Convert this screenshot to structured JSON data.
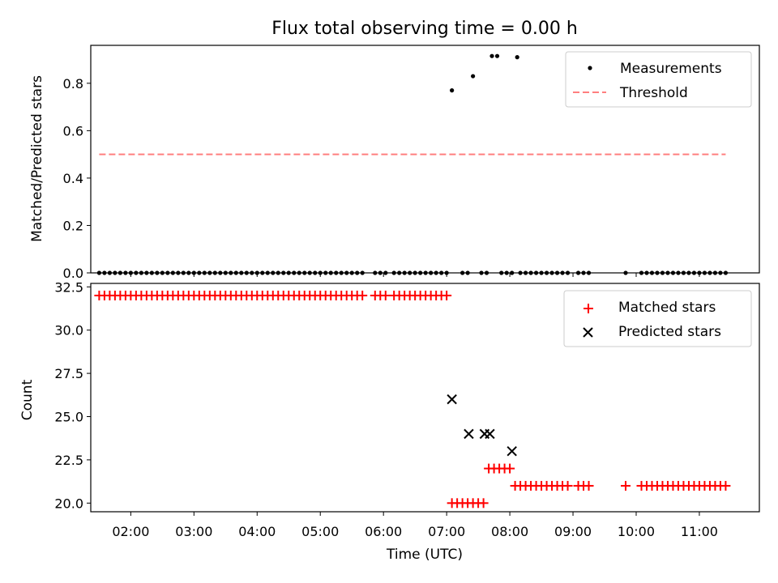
{
  "chart_data": [
    {
      "type": "scatter",
      "title": "Flux total observing time = 0.00 h",
      "xlabel": "",
      "ylabel": "Matched/Predicted stars",
      "xlim": [
        "01:22",
        "11:57"
      ],
      "ylim": [
        0,
        0.96
      ],
      "yticks": [
        "0.0",
        "0.2",
        "0.4",
        "0.6",
        "0.8"
      ],
      "legend_position": "top-right",
      "series": [
        {
          "name": "Measurements",
          "marker": "dot",
          "color": "#000000",
          "points": [
            [
              "01:30",
              0
            ],
            [
              "01:35",
              0
            ],
            [
              "01:40",
              0
            ],
            [
              "01:45",
              0
            ],
            [
              "01:50",
              0
            ],
            [
              "01:55",
              0
            ],
            [
              "02:00",
              0
            ],
            [
              "02:05",
              0
            ],
            [
              "02:10",
              0
            ],
            [
              "02:15",
              0
            ],
            [
              "02:20",
              0
            ],
            [
              "02:25",
              0
            ],
            [
              "02:30",
              0
            ],
            [
              "02:35",
              0
            ],
            [
              "02:40",
              0
            ],
            [
              "02:45",
              0
            ],
            [
              "02:50",
              0
            ],
            [
              "02:55",
              0
            ],
            [
              "03:00",
              0
            ],
            [
              "03:05",
              0
            ],
            [
              "03:10",
              0
            ],
            [
              "03:15",
              0
            ],
            [
              "03:20",
              0
            ],
            [
              "03:25",
              0
            ],
            [
              "03:30",
              0
            ],
            [
              "03:35",
              0
            ],
            [
              "03:40",
              0
            ],
            [
              "03:45",
              0
            ],
            [
              "03:50",
              0
            ],
            [
              "03:55",
              0
            ],
            [
              "04:00",
              0
            ],
            [
              "04:05",
              0
            ],
            [
              "04:10",
              0
            ],
            [
              "04:15",
              0
            ],
            [
              "04:20",
              0
            ],
            [
              "04:25",
              0
            ],
            [
              "04:30",
              0
            ],
            [
              "04:35",
              0
            ],
            [
              "04:40",
              0
            ],
            [
              "04:45",
              0
            ],
            [
              "04:50",
              0
            ],
            [
              "04:55",
              0
            ],
            [
              "05:00",
              0
            ],
            [
              "05:05",
              0
            ],
            [
              "05:10",
              0
            ],
            [
              "05:15",
              0
            ],
            [
              "05:20",
              0
            ],
            [
              "05:25",
              0
            ],
            [
              "05:30",
              0
            ],
            [
              "05:35",
              0
            ],
            [
              "05:40",
              0
            ],
            [
              "05:52",
              0
            ],
            [
              "05:57",
              0
            ],
            [
              "06:02",
              0
            ],
            [
              "06:10",
              0
            ],
            [
              "06:15",
              0
            ],
            [
              "06:20",
              0
            ],
            [
              "06:25",
              0
            ],
            [
              "06:30",
              0
            ],
            [
              "06:35",
              0
            ],
            [
              "06:40",
              0
            ],
            [
              "06:45",
              0
            ],
            [
              "06:50",
              0
            ],
            [
              "06:55",
              0
            ],
            [
              "07:00",
              0
            ],
            [
              "07:05",
              0.77
            ],
            [
              "07:15",
              0
            ],
            [
              "07:20",
              0
            ],
            [
              "07:25",
              0.83
            ],
            [
              "07:33",
              0
            ],
            [
              "07:38",
              0
            ],
            [
              "07:43",
              0.915
            ],
            [
              "07:48",
              0.915
            ],
            [
              "07:52",
              0
            ],
            [
              "07:57",
              0
            ],
            [
              "08:02",
              0
            ],
            [
              "08:07",
              0.91
            ],
            [
              "08:10",
              0
            ],
            [
              "08:15",
              0
            ],
            [
              "08:20",
              0
            ],
            [
              "08:25",
              0
            ],
            [
              "08:30",
              0
            ],
            [
              "08:35",
              0
            ],
            [
              "08:40",
              0
            ],
            [
              "08:45",
              0
            ],
            [
              "08:50",
              0
            ],
            [
              "08:55",
              0
            ],
            [
              "09:05",
              0
            ],
            [
              "09:10",
              0
            ],
            [
              "09:15",
              0
            ],
            [
              "09:50",
              0
            ],
            [
              "10:05",
              0
            ],
            [
              "10:10",
              0
            ],
            [
              "10:15",
              0
            ],
            [
              "10:20",
              0
            ],
            [
              "10:25",
              0
            ],
            [
              "10:30",
              0
            ],
            [
              "10:35",
              0
            ],
            [
              "10:40",
              0
            ],
            [
              "10:45",
              0
            ],
            [
              "10:50",
              0
            ],
            [
              "10:55",
              0
            ],
            [
              "11:00",
              0
            ],
            [
              "11:05",
              0
            ],
            [
              "11:10",
              0
            ],
            [
              "11:15",
              0
            ],
            [
              "11:20",
              0
            ],
            [
              "11:25",
              0
            ]
          ]
        },
        {
          "name": "Threshold",
          "marker": "dashed-line",
          "color": "#ff7f7f",
          "points": [
            [
              "01:30",
              0.5
            ],
            [
              "11:25",
              0.5
            ]
          ]
        }
      ]
    },
    {
      "type": "scatter",
      "title": "",
      "xlabel": "Time (UTC)",
      "ylabel": "Count",
      "xlim": [
        "01:22",
        "11:57"
      ],
      "ylim": [
        19.5,
        32.7
      ],
      "yticks": [
        "20.0",
        "22.5",
        "25.0",
        "27.5",
        "30.0",
        "32.5"
      ],
      "xticks": [
        "02:00",
        "03:00",
        "04:00",
        "05:00",
        "06:00",
        "07:00",
        "08:00",
        "09:00",
        "10:00",
        "11:00"
      ],
      "legend_position": "top-right",
      "series": [
        {
          "name": "Matched stars",
          "marker": "plus",
          "color": "#ff0000",
          "points": [
            [
              "01:30",
              32
            ],
            [
              "01:35",
              32
            ],
            [
              "01:40",
              32
            ],
            [
              "01:45",
              32
            ],
            [
              "01:50",
              32
            ],
            [
              "01:55",
              32
            ],
            [
              "02:00",
              32
            ],
            [
              "02:05",
              32
            ],
            [
              "02:10",
              32
            ],
            [
              "02:15",
              32
            ],
            [
              "02:20",
              32
            ],
            [
              "02:25",
              32
            ],
            [
              "02:30",
              32
            ],
            [
              "02:35",
              32
            ],
            [
              "02:40",
              32
            ],
            [
              "02:45",
              32
            ],
            [
              "02:50",
              32
            ],
            [
              "02:55",
              32
            ],
            [
              "03:00",
              32
            ],
            [
              "03:05",
              32
            ],
            [
              "03:10",
              32
            ],
            [
              "03:15",
              32
            ],
            [
              "03:20",
              32
            ],
            [
              "03:25",
              32
            ],
            [
              "03:30",
              32
            ],
            [
              "03:35",
              32
            ],
            [
              "03:40",
              32
            ],
            [
              "03:45",
              32
            ],
            [
              "03:50",
              32
            ],
            [
              "03:55",
              32
            ],
            [
              "04:00",
              32
            ],
            [
              "04:05",
              32
            ],
            [
              "04:10",
              32
            ],
            [
              "04:15",
              32
            ],
            [
              "04:20",
              32
            ],
            [
              "04:25",
              32
            ],
            [
              "04:30",
              32
            ],
            [
              "04:35",
              32
            ],
            [
              "04:40",
              32
            ],
            [
              "04:45",
              32
            ],
            [
              "04:50",
              32
            ],
            [
              "04:55",
              32
            ],
            [
              "05:00",
              32
            ],
            [
              "05:05",
              32
            ],
            [
              "05:10",
              32
            ],
            [
              "05:15",
              32
            ],
            [
              "05:20",
              32
            ],
            [
              "05:25",
              32
            ],
            [
              "05:30",
              32
            ],
            [
              "05:35",
              32
            ],
            [
              "05:40",
              32
            ],
            [
              "05:52",
              32
            ],
            [
              "05:57",
              32
            ],
            [
              "06:02",
              32
            ],
            [
              "06:10",
              32
            ],
            [
              "06:15",
              32
            ],
            [
              "06:20",
              32
            ],
            [
              "06:25",
              32
            ],
            [
              "06:30",
              32
            ],
            [
              "06:35",
              32
            ],
            [
              "06:40",
              32
            ],
            [
              "06:45",
              32
            ],
            [
              "06:50",
              32
            ],
            [
              "06:55",
              32
            ],
            [
              "07:00",
              32
            ],
            [
              "07:05",
              20
            ],
            [
              "07:10",
              20
            ],
            [
              "07:15",
              20
            ],
            [
              "07:20",
              20
            ],
            [
              "07:25",
              20
            ],
            [
              "07:30",
              20
            ],
            [
              "07:35",
              20
            ],
            [
              "07:40",
              22
            ],
            [
              "07:45",
              22
            ],
            [
              "07:50",
              22
            ],
            [
              "07:55",
              22
            ],
            [
              "08:00",
              22
            ],
            [
              "08:05",
              21
            ],
            [
              "08:10",
              21
            ],
            [
              "08:15",
              21
            ],
            [
              "08:20",
              21
            ],
            [
              "08:25",
              21
            ],
            [
              "08:30",
              21
            ],
            [
              "08:35",
              21
            ],
            [
              "08:40",
              21
            ],
            [
              "08:45",
              21
            ],
            [
              "08:50",
              21
            ],
            [
              "08:55",
              21
            ],
            [
              "09:05",
              21
            ],
            [
              "09:10",
              21
            ],
            [
              "09:15",
              21
            ],
            [
              "09:50",
              21
            ],
            [
              "10:05",
              21
            ],
            [
              "10:10",
              21
            ],
            [
              "10:15",
              21
            ],
            [
              "10:20",
              21
            ],
            [
              "10:25",
              21
            ],
            [
              "10:30",
              21
            ],
            [
              "10:35",
              21
            ],
            [
              "10:40",
              21
            ],
            [
              "10:45",
              21
            ],
            [
              "10:50",
              21
            ],
            [
              "10:55",
              21
            ],
            [
              "11:00",
              21
            ],
            [
              "11:05",
              21
            ],
            [
              "11:10",
              21
            ],
            [
              "11:15",
              21
            ],
            [
              "11:20",
              21
            ],
            [
              "11:25",
              21
            ]
          ]
        },
        {
          "name": "Predicted stars",
          "marker": "x",
          "color": "#000000",
          "points": [
            [
              "07:05",
              26
            ],
            [
              "07:21",
              24
            ],
            [
              "07:36",
              24
            ],
            [
              "07:41",
              24
            ],
            [
              "08:02",
              23
            ]
          ]
        }
      ]
    }
  ]
}
